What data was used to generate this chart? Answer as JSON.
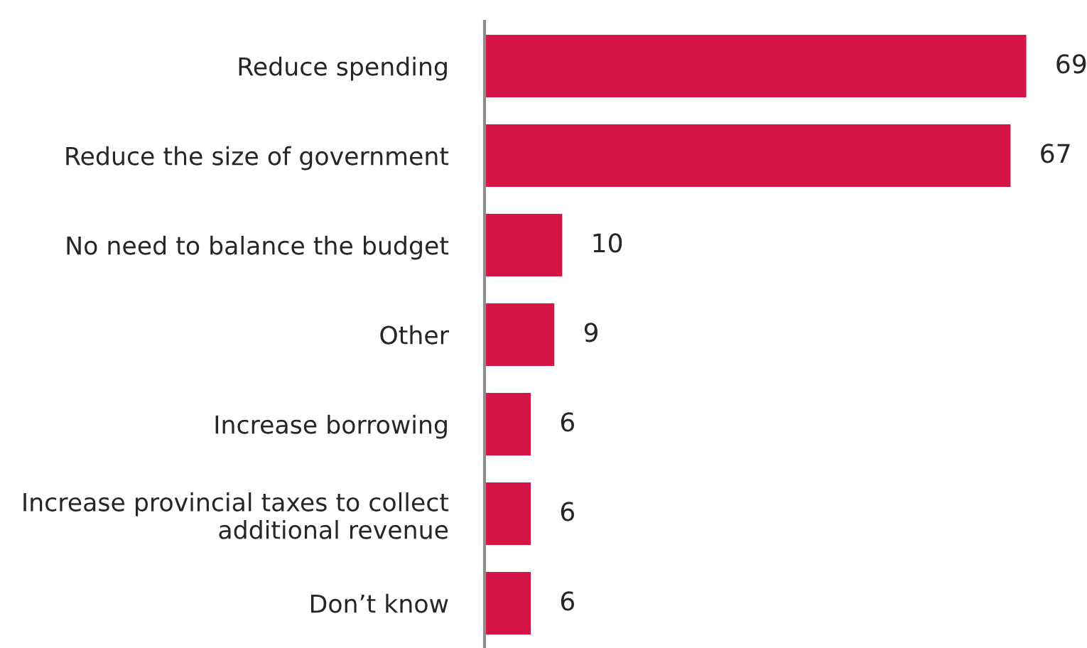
{
  "chart_data": {
    "type": "bar",
    "orientation": "horizontal",
    "categories": [
      "Reduce spending",
      "Reduce the size of government",
      "No need to balance the budget",
      "Other",
      "Increase borrowing",
      "Increase provincial taxes to collect additional revenue",
      "Don’t know"
    ],
    "values": [
      69,
      67,
      10,
      9,
      6,
      6,
      6
    ],
    "color": "#d51546",
    "data_labels": true,
    "grid": false,
    "legend": false
  }
}
